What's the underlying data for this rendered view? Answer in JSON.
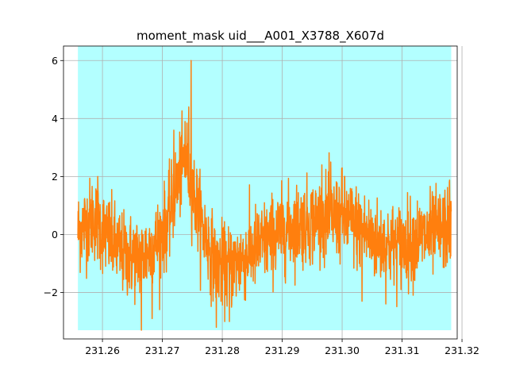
{
  "chart_data": {
    "type": "line",
    "title": "moment_mask uid___A001_X3788_X607d",
    "xlabel": "",
    "ylabel": "",
    "xlim": [
      231.2535,
      231.3192
    ],
    "ylim": [
      -3.6,
      6.5
    ],
    "x_ticks": [
      231.26,
      231.27,
      231.28,
      231.29,
      231.3,
      231.31,
      231.32
    ],
    "x_tick_labels": [
      "231.26",
      "231.27",
      "231.28",
      "231.29",
      "231.30",
      "231.31",
      "231.32"
    ],
    "y_ticks": [
      -2,
      0,
      2,
      4,
      6
    ],
    "y_tick_labels": [
      "−2",
      "0",
      "2",
      "4",
      "6"
    ],
    "grid": true,
    "mask_region": {
      "x": [
        231.2559,
        231.3182
      ],
      "y": [
        -3.3,
        6.5
      ],
      "color": "#b3ffff"
    },
    "series": [
      {
        "color": "#ff7f0e",
        "x_start": 231.2559,
        "x_end": 231.3182,
        "noise_std": 0.72,
        "envelope": [
          [
            231.2559,
            0.1
          ],
          [
            231.2585,
            0.6
          ],
          [
            231.2605,
            0.0
          ],
          [
            231.2635,
            -0.7
          ],
          [
            231.2665,
            -0.8
          ],
          [
            231.269,
            -0.3
          ],
          [
            231.271,
            0.5
          ],
          [
            231.2725,
            1.8
          ],
          [
            231.274,
            2.7
          ],
          [
            231.275,
            1.6
          ],
          [
            231.2765,
            0.4
          ],
          [
            231.2785,
            -0.8
          ],
          [
            231.2805,
            -1.2
          ],
          [
            231.283,
            -0.9
          ],
          [
            231.286,
            -0.4
          ],
          [
            231.289,
            0.0
          ],
          [
            231.292,
            0.3
          ],
          [
            231.296,
            0.5
          ],
          [
            231.3,
            0.6
          ],
          [
            231.303,
            0.2
          ],
          [
            231.306,
            -0.3
          ],
          [
            231.309,
            -0.4
          ],
          [
            231.312,
            -0.2
          ],
          [
            231.315,
            0.0
          ],
          [
            231.3182,
            0.3
          ]
        ],
        "peaks": [
          [
            231.2748,
            6.0
          ],
          [
            231.2744,
            4.4
          ],
          [
            231.2738,
            3.9
          ],
          [
            231.2719,
            3.6
          ],
          [
            231.2592,
            2.0
          ],
          [
            231.2966,
            2.4
          ],
          [
            231.2981,
            2.5
          ],
          [
            231.3,
            2.3
          ],
          [
            231.3179,
            1.8
          ],
          [
            231.2665,
            -3.3
          ],
          [
            231.279,
            -3.2
          ],
          [
            231.2812,
            -3.0
          ],
          [
            231.2683,
            -2.9
          ],
          [
            231.3033,
            -2.3
          ]
        ]
      }
    ]
  }
}
